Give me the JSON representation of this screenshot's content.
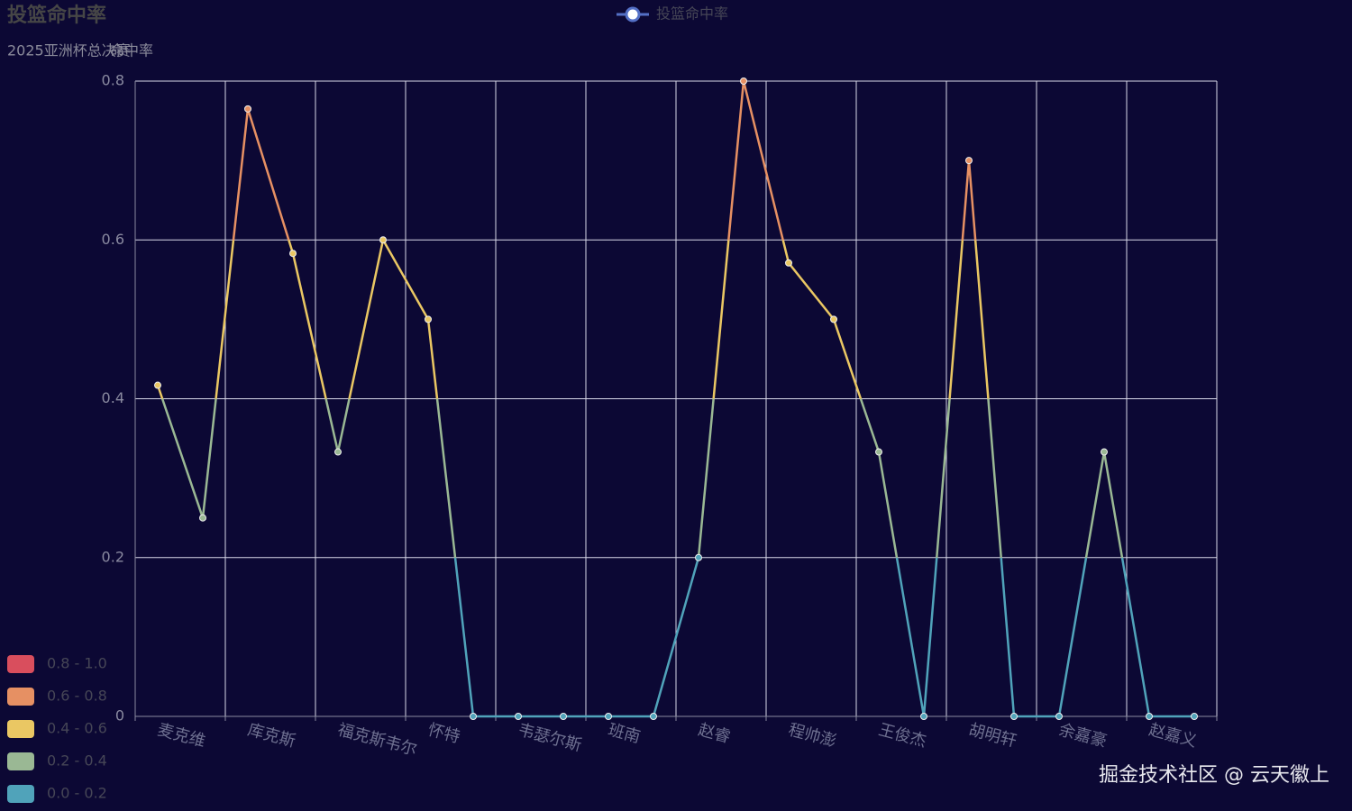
{
  "chart_data": {
    "type": "line",
    "title": "投篮命中率",
    "subtitle": "2025亚洲杯总决赛",
    "y_axis_label": "命中率",
    "watermark": "掘金技术社区 @ 云天徽上",
    "categories": [
      "麦克维",
      null,
      "库克斯",
      null,
      "福克斯韦尔",
      null,
      "怀特",
      null,
      "韦瑟尔斯",
      null,
      "班南",
      null,
      "赵睿",
      null,
      "程帅澎",
      null,
      "王俊杰",
      null,
      "胡明轩",
      null,
      "余嘉豪",
      null,
      "赵嘉义",
      null
    ],
    "series": [
      {
        "name": "投篮命中率",
        "color": "#5470c6",
        "values": [
          0.417,
          0.25,
          0.765,
          0.583,
          0.333,
          0.6,
          0.5,
          0,
          0,
          0,
          0,
          0,
          0.2,
          0.8,
          0.571,
          0.5,
          0.333,
          0,
          0.7,
          0,
          0,
          0.333,
          0,
          0
        ]
      }
    ],
    "ylim": [
      0,
      0.8
    ],
    "yticks": [
      0,
      0.2,
      0.4,
      0.6,
      0.8
    ],
    "grid": true,
    "legend_position": "top",
    "visual_map": [
      {
        "label": "0.8 - 1.0",
        "min": 0.8,
        "max": 1.0,
        "color": "#d94e5d"
      },
      {
        "label": "0.6 - 0.8",
        "min": 0.6,
        "max": 0.8,
        "color": "#e69063"
      },
      {
        "label": "0.4 - 0.6",
        "min": 0.4,
        "max": 0.6,
        "color": "#eac763"
      },
      {
        "label": "0.2 - 0.4",
        "min": 0.2,
        "max": 0.4,
        "color": "#9ab894"
      },
      {
        "label": "0.0 - 0.2",
        "min": 0,
        "max": 0.2,
        "color": "#50a3ba"
      }
    ]
  }
}
